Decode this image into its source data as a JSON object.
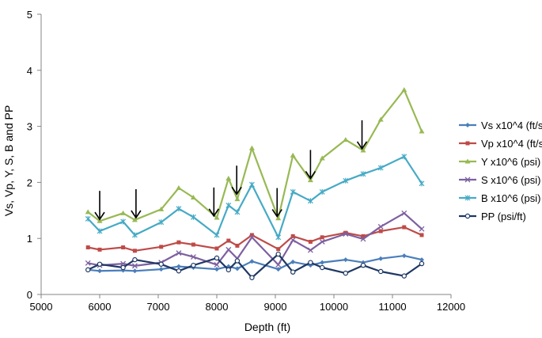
{
  "chart_data": {
    "type": "line",
    "title": "",
    "xlabel": "Depth (ft)",
    "ylabel": "Vs, Vp, Y, S, B and PP",
    "xlim": [
      5000,
      12000
    ],
    "ylim": [
      0,
      5
    ],
    "xticks": [
      5000,
      6000,
      7000,
      8000,
      9000,
      10000,
      11000,
      12000
    ],
    "yticks": [
      0,
      1,
      2,
      3,
      4,
      5
    ],
    "grid": false,
    "legend_position": "right",
    "x": [
      5800,
      6000,
      6400,
      6600,
      7050,
      7350,
      7600,
      8000,
      8200,
      8350,
      8600,
      9050,
      9300,
      9600,
      9800,
      10200,
      10500,
      10800,
      11200,
      11500
    ],
    "series": [
      {
        "name": "Vs x10^4 (ft/sec)",
        "color": "#4a7ebb",
        "marker": "diamond",
        "values": [
          0.44,
          0.42,
          0.43,
          0.42,
          0.45,
          0.5,
          0.48,
          0.45,
          0.5,
          0.46,
          0.59,
          0.45,
          0.58,
          0.52,
          0.57,
          0.62,
          0.57,
          0.64,
          0.69,
          0.62
        ]
      },
      {
        "name": "Vp x10^4 (ft/sec)",
        "color": "#be4b48",
        "marker": "square",
        "values": [
          0.84,
          0.8,
          0.84,
          0.78,
          0.85,
          0.93,
          0.89,
          0.82,
          0.96,
          0.87,
          1.06,
          0.81,
          1.04,
          0.94,
          1.02,
          1.1,
          1.04,
          1.13,
          1.2,
          1.06
        ]
      },
      {
        "name": "Y x10^6 (psi)",
        "color": "#98b954",
        "marker": "triangle",
        "values": [
          1.47,
          1.31,
          1.45,
          1.33,
          1.52,
          1.9,
          1.73,
          1.37,
          2.07,
          1.7,
          2.61,
          1.36,
          2.48,
          2.04,
          2.43,
          2.76,
          2.57,
          3.12,
          3.65,
          2.91
        ]
      },
      {
        "name": "S x10^6 (psi)",
        "color": "#7d60a0",
        "marker": "x",
        "values": [
          0.56,
          0.52,
          0.55,
          0.51,
          0.57,
          0.74,
          0.67,
          0.53,
          0.8,
          0.64,
          1.02,
          0.53,
          0.97,
          0.79,
          0.94,
          1.08,
          0.99,
          1.21,
          1.45,
          1.17
        ]
      },
      {
        "name": "B x10^6 (psi)",
        "color": "#46aac5",
        "marker": "star",
        "values": [
          1.35,
          1.13,
          1.3,
          1.06,
          1.29,
          1.53,
          1.38,
          1.06,
          1.59,
          1.47,
          1.96,
          1.02,
          1.83,
          1.67,
          1.83,
          2.03,
          2.15,
          2.26,
          2.46,
          1.98
        ]
      },
      {
        "name": "PP (psi/ft)",
        "color": "#1f3864",
        "marker": "circle",
        "values": [
          0.44,
          0.54,
          0.48,
          0.62,
          0.54,
          0.42,
          0.52,
          0.65,
          0.44,
          0.6,
          0.3,
          0.72,
          0.4,
          0.57,
          0.48,
          0.38,
          0.52,
          0.41,
          0.33,
          0.55
        ]
      }
    ],
    "annotations": {
      "down_arrows_at_depth": [
        6000,
        6620,
        7950,
        8340,
        9030,
        9600,
        10480
      ],
      "arrow_tip_values": [
        1.34,
        1.37,
        1.4,
        1.79,
        1.39,
        2.07,
        2.6
      ]
    }
  }
}
